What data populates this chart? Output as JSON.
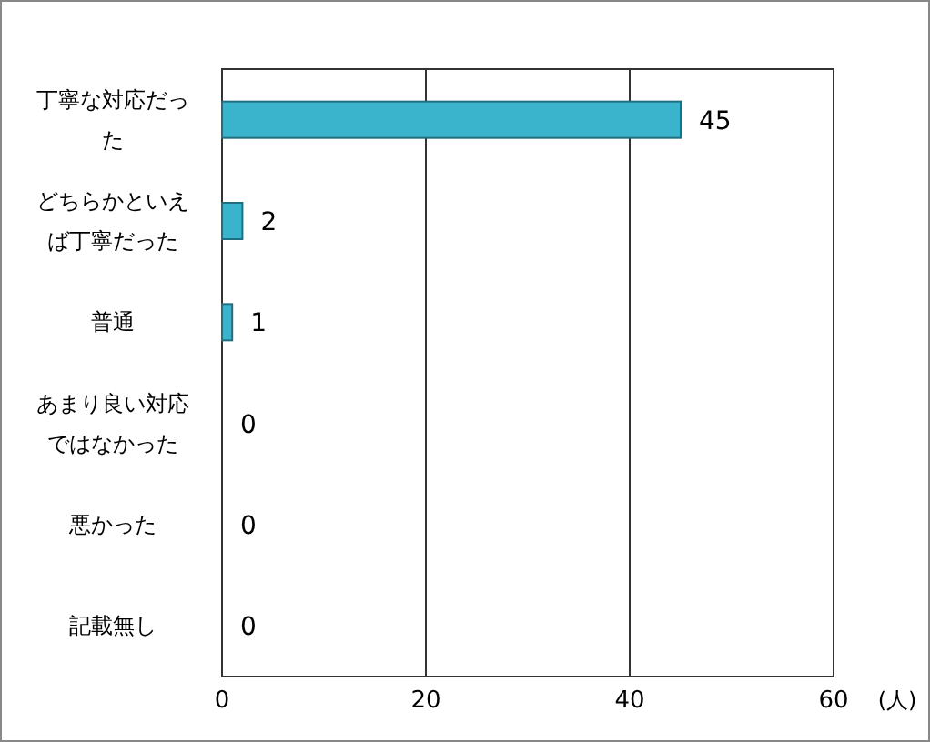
{
  "chart_data": {
    "type": "bar",
    "orientation": "horizontal",
    "categories": [
      "丁寧な対応だった",
      "どちらかといえば丁寧だった",
      "普通",
      "あまり良い対応ではなかった",
      "悪かった",
      "記載無し"
    ],
    "values": [
      45,
      2,
      1,
      0,
      0,
      0
    ],
    "color": "#3ab4cc",
    "xlim": [
      0,
      60
    ],
    "xticks": [
      0,
      20,
      40,
      60
    ],
    "grid": "x",
    "data_labels": true,
    "xlabel": "(人)"
  }
}
